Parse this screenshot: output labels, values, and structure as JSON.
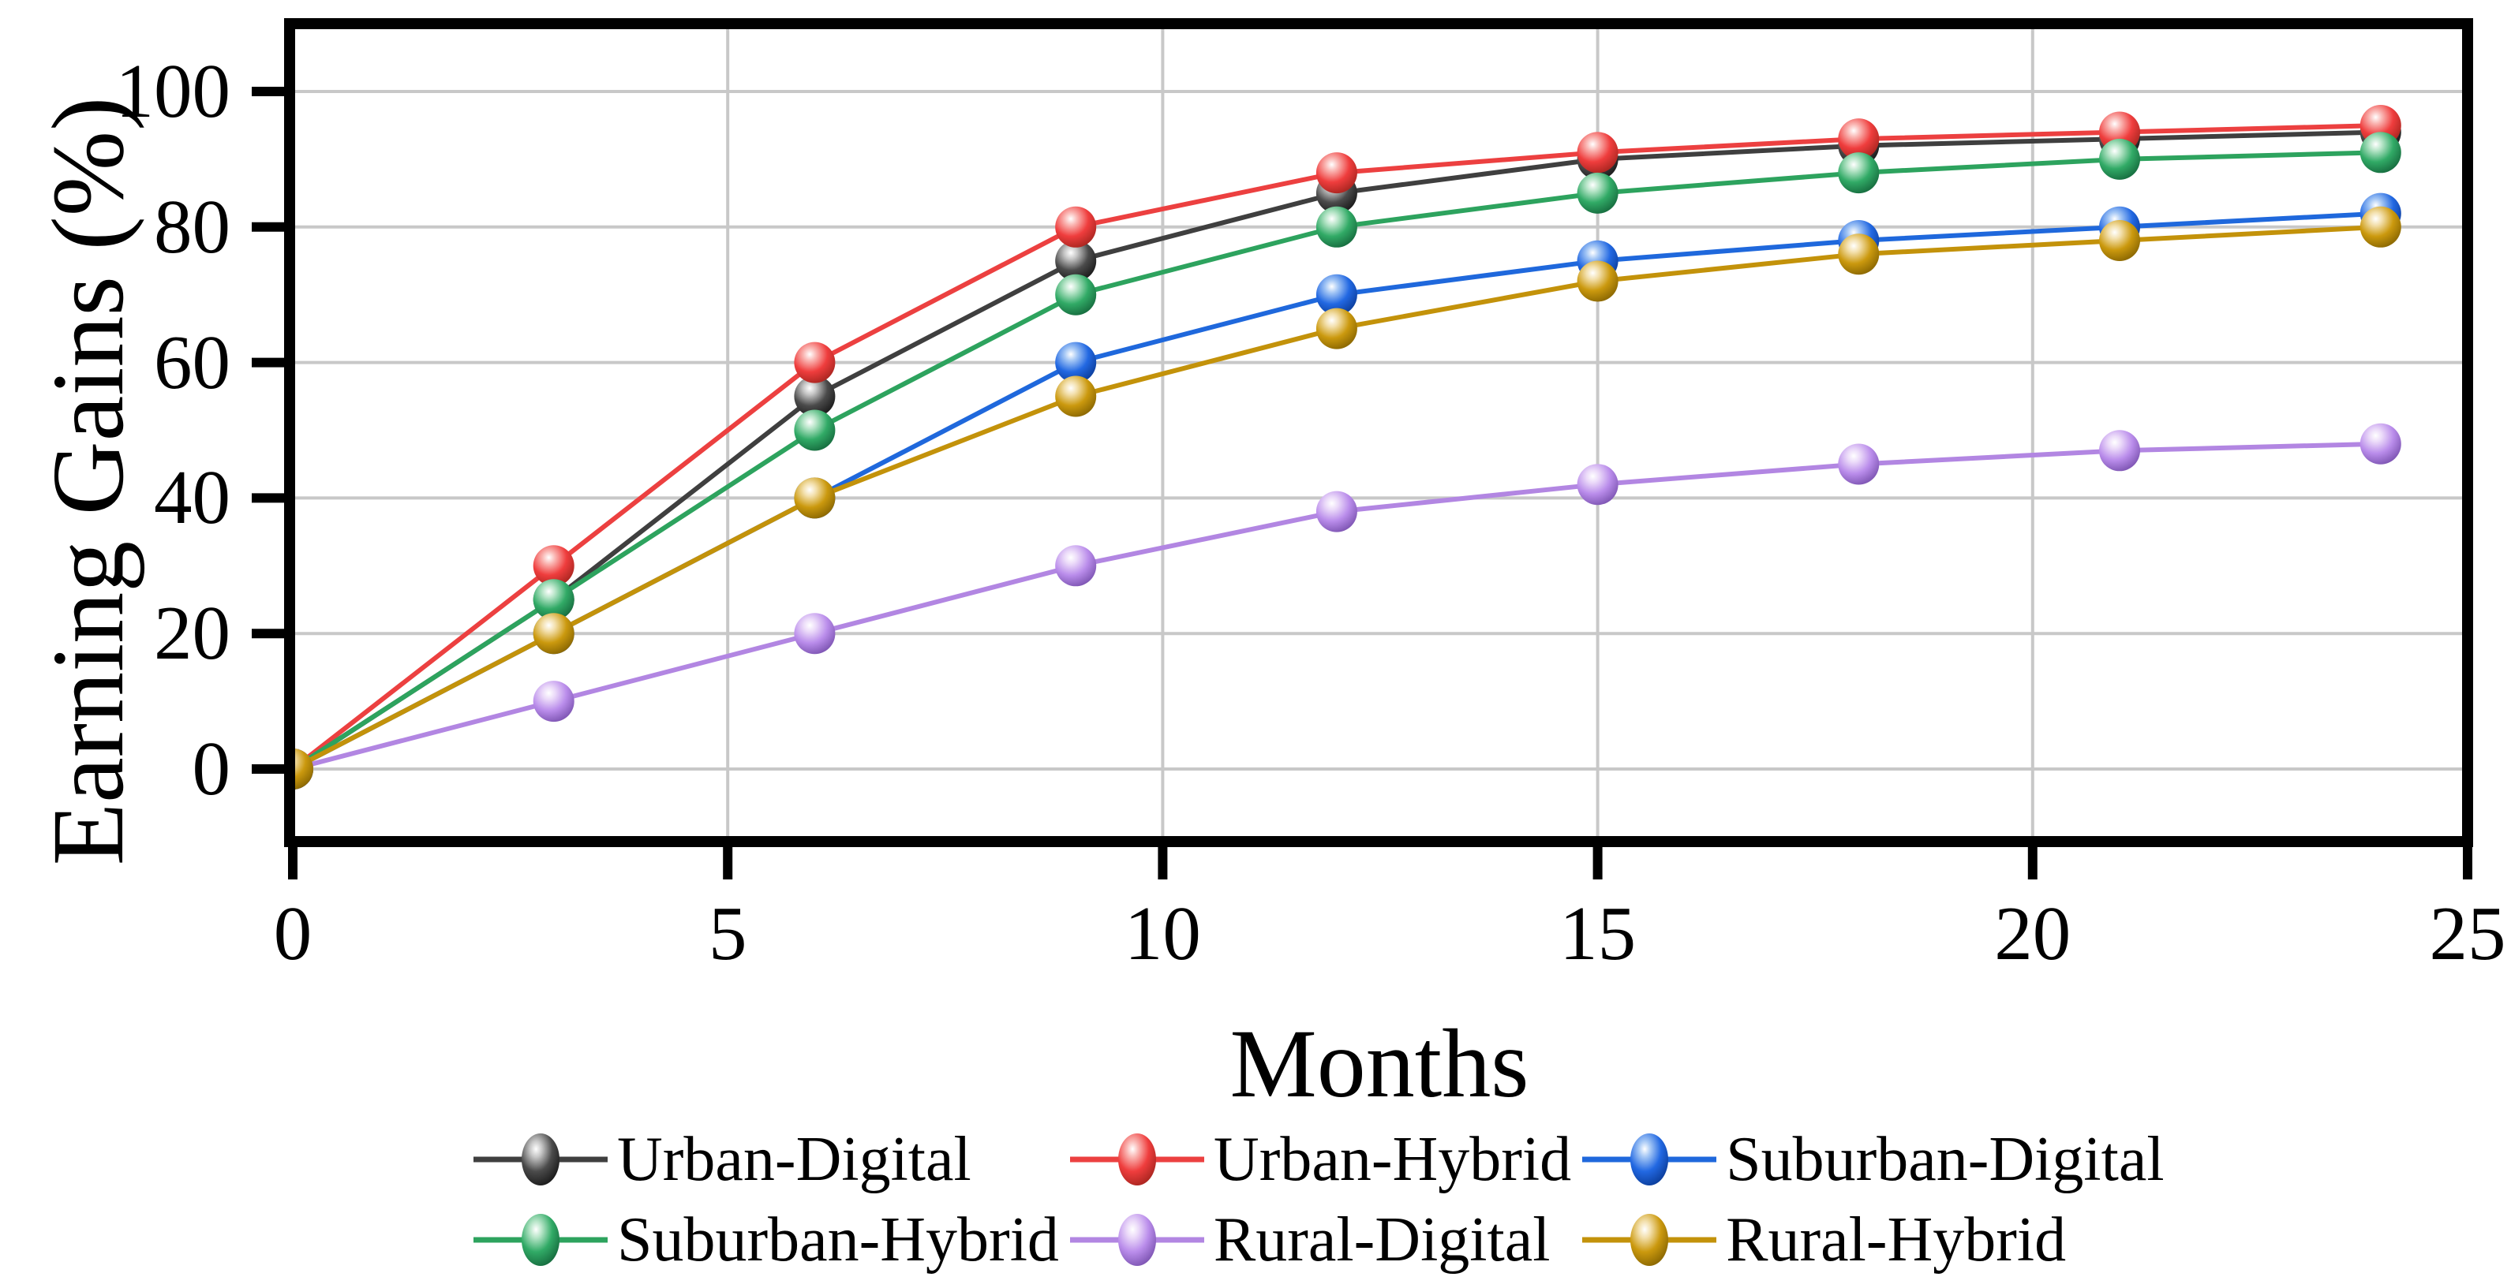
{
  "figure": {
    "background": "#ffffff",
    "title": ""
  },
  "chart_data": {
    "type": "line",
    "title": "",
    "xlabel": "Months",
    "ylabel": "Earning Gains (%)",
    "x": [
      0,
      3,
      6,
      9,
      12,
      15,
      18,
      21,
      24
    ],
    "xlim": [
      0,
      25
    ],
    "ylim": [
      0,
      100
    ],
    "x_ticks": [
      0,
      5,
      10,
      15,
      20,
      25
    ],
    "y_ticks": [
      0,
      20,
      40,
      60,
      80,
      100
    ],
    "grid": true,
    "legend": {
      "position": "bottom",
      "columns": 3,
      "marker": "ball-on-line"
    },
    "series": [
      {
        "name": "Urban-Digital",
        "values": [
          0,
          25,
          55,
          75,
          85,
          90,
          92,
          93,
          94
        ],
        "line_color": "#3f3f3f",
        "ball_color": "#4b4b4b",
        "ball_light": "#c6c6c6",
        "ball_dark": "#1d1d1d"
      },
      {
        "name": "Urban-Hybrid",
        "values": [
          0,
          30,
          60,
          80,
          88,
          91,
          93,
          94,
          95
        ],
        "line_color": "#ec4040",
        "ball_color": "#ef3d3d",
        "ball_light": "#fab5b2",
        "ball_dark": "#ae2722"
      },
      {
        "name": "Suburban-Digital",
        "values": [
          0,
          20,
          40,
          60,
          70,
          75,
          78,
          80,
          82
        ],
        "line_color": "#1f68dc",
        "ball_color": "#2268e2",
        "ball_light": "#a3c6f5",
        "ball_dark": "#0d409f"
      },
      {
        "name": "Suburban-Hybrid",
        "values": [
          0,
          25,
          50,
          70,
          80,
          85,
          88,
          90,
          91
        ],
        "line_color": "#2da35e",
        "ball_color": "#31aa66",
        "ball_light": "#b7e5c8",
        "ball_dark": "#187041"
      },
      {
        "name": "Rural-Digital",
        "values": [
          0,
          10,
          20,
          30,
          38,
          42,
          45,
          47,
          48
        ],
        "line_color": "#b286e2",
        "ball_color": "#ba8deb",
        "ball_light": "#ebdaf9",
        "ball_dark": "#8158b6"
      },
      {
        "name": "Rural-Hybrid",
        "values": [
          0,
          20,
          40,
          55,
          65,
          72,
          76,
          78,
          80
        ],
        "line_color": "#c3920a",
        "ball_color": "#cb990e",
        "ball_light": "#f3e0ad",
        "ball_dark": "#8e6a02"
      }
    ],
    "colors": {
      "gridline": "#c8c8c8",
      "frame": "#000000",
      "tick": "#000000",
      "text": "#000000",
      "background": "#ffffff"
    }
  }
}
